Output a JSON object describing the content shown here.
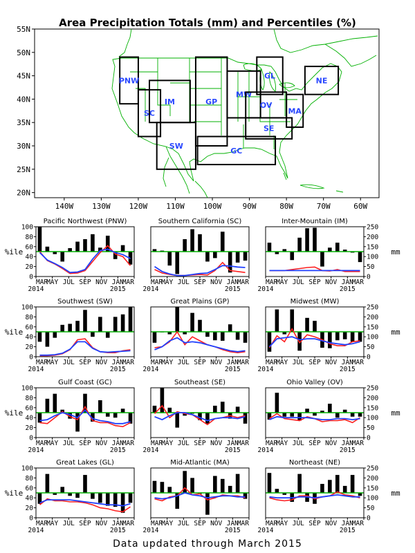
{
  "title": "Area Precipitation Totals (mm) and Percentiles (%)",
  "footer": "Data updated through March 2015",
  "colors": {
    "bar": "#000000",
    "pct_line": "#ff2020",
    "mm_line": "#2040ff",
    "median": "#00b000",
    "map_lines": "#00b000",
    "boxes": "#000000",
    "region_text": "#2a48ff"
  },
  "map": {
    "lat_labels": [
      "55N",
      "50N",
      "45N",
      "40N",
      "35N",
      "30N",
      "25N",
      "20N"
    ],
    "lon_labels": [
      "140W",
      "130W",
      "120W",
      "110W",
      "100W",
      "90W",
      "80W",
      "70W",
      "60W"
    ],
    "regions": [
      {
        "code": "PNW",
        "lon": [
          -125,
          -120
        ],
        "lat": [
          39,
          49
        ]
      },
      {
        "code": "SC",
        "lon": [
          -120,
          -114
        ],
        "lat": [
          32,
          42
        ]
      },
      {
        "code": "IM",
        "lon": [
          -117,
          -106
        ],
        "lat": [
          35,
          44
        ]
      },
      {
        "code": "SW",
        "lon": [
          -115,
          -104.5
        ],
        "lat": [
          25,
          35
        ]
      },
      {
        "code": "GP",
        "lon": [
          -104.5,
          -96
        ],
        "lat": [
          30,
          49
        ]
      },
      {
        "code": "MW",
        "lon": [
          -96,
          -87
        ],
        "lat": [
          36,
          46
        ]
      },
      {
        "code": "GL",
        "lon": [
          -88,
          -81
        ],
        "lat": [
          41,
          49
        ]
      },
      {
        "code": "OV",
        "lon": [
          -91,
          -80
        ],
        "lat": [
          36,
          41.5
        ]
      },
      {
        "code": "SE",
        "lon": [
          -91,
          -78.5
        ],
        "lat": [
          31.5,
          36
        ]
      },
      {
        "code": "GC",
        "lon": [
          -104,
          -83
        ],
        "lat": [
          26,
          32
        ]
      },
      {
        "code": "MA",
        "lon": [
          -80,
          -75.5
        ],
        "lat": [
          34,
          41
        ]
      },
      {
        "code": "NE",
        "lon": [
          -75,
          -66
        ],
        "lat": [
          41,
          47
        ]
      }
    ]
  },
  "panel_axes": {
    "pct_label": "%ile",
    "mm_label": "mm",
    "pct_ticks": [
      "0",
      "20",
      "40",
      "60",
      "80",
      "100"
    ],
    "mm_ticks": [
      "0",
      "50",
      "100",
      "150",
      "200",
      "250"
    ],
    "month_ticks": [
      "MAR",
      "MAY",
      "JUL",
      "SEP",
      "NOV",
      "JAN",
      "MAR"
    ],
    "year_start": "2014",
    "year_end": "2015"
  },
  "chart_data": [
    {
      "type": "bar",
      "title": "Pacific Northwest (PNW)",
      "months": [
        "MAR 2014",
        "APR",
        "MAY",
        "JUN",
        "JUL",
        "AUG",
        "SEP",
        "OCT",
        "NOV",
        "DEC",
        "JAN 2015",
        "FEB",
        "MAR"
      ],
      "ylim": [
        0,
        100
      ],
      "y2lim": [
        0,
        250
      ],
      "percentile": [
        100,
        60,
        45,
        30,
        57,
        70,
        75,
        85,
        58,
        82,
        35,
        63,
        24
      ],
      "pct_line": [
        50,
        32,
        25,
        16,
        6,
        7,
        12,
        30,
        48,
        62,
        45,
        40,
        22
      ],
      "mm_line": [
        48,
        33,
        26,
        18,
        8,
        9,
        14,
        35,
        52,
        55,
        48,
        44,
        36
      ]
    },
    {
      "type": "bar",
      "title": "Southern California (SC)",
      "months": [
        "MAR 2014",
        "APR",
        "MAY",
        "JUN",
        "JUL",
        "AUG",
        "SEP",
        "OCT",
        "NOV",
        "DEC",
        "JAN 2015",
        "FEB",
        "MAR"
      ],
      "ylim": [
        0,
        100
      ],
      "y2lim": [
        0,
        250
      ],
      "percentile": [
        55,
        52,
        22,
        5,
        75,
        95,
        85,
        30,
        37,
        90,
        8,
        28,
        32
      ],
      "pct_line": [
        14,
        7,
        4,
        2,
        2,
        3,
        4,
        3,
        12,
        28,
        12,
        10,
        8
      ],
      "mm_line": [
        20,
        10,
        5,
        2,
        2,
        4,
        6,
        7,
        14,
        22,
        21,
        19,
        18
      ]
    },
    {
      "type": "bar",
      "title": "Inter-Mountain (IM)",
      "months": [
        "MAR 2014",
        "APR",
        "MAY",
        "JUN",
        "JUL",
        "AUG",
        "SEP",
        "OCT",
        "NOV",
        "DEC",
        "JAN 2015",
        "FEB",
        "MAR"
      ],
      "ylim": [
        0,
        100
      ],
      "y2lim": [
        0,
        250
      ],
      "percentile": [
        68,
        45,
        55,
        33,
        78,
        97,
        98,
        20,
        58,
        68,
        54,
        48,
        29
      ],
      "pct_line": [
        12,
        12,
        12,
        14,
        16,
        18,
        19,
        12,
        11,
        14,
        10,
        10,
        10
      ],
      "mm_line": [
        12,
        12,
        12,
        12,
        12,
        12,
        12,
        12,
        12,
        12,
        12,
        12,
        12
      ]
    },
    {
      "type": "bar",
      "title": "Southwest (SW)",
      "months": [
        "MAR 2014",
        "APR",
        "MAY",
        "JUN",
        "JUL",
        "AUG",
        "SEP",
        "OCT",
        "NOV",
        "DEC",
        "JAN 2015",
        "FEB",
        "MAR"
      ],
      "ylim": [
        0,
        100
      ],
      "y2lim": [
        0,
        250
      ],
      "percentile": [
        30,
        20,
        38,
        64,
        66,
        72,
        94,
        40,
        80,
        38,
        80,
        85,
        100
      ],
      "pct_line": [
        2,
        2,
        3,
        6,
        14,
        34,
        36,
        18,
        10,
        8,
        8,
        12,
        14
      ],
      "mm_line": [
        3,
        3,
        4,
        7,
        15,
        30,
        30,
        17,
        10,
        9,
        10,
        11,
        12
      ]
    },
    {
      "type": "bar",
      "title": "Great Plains (GP)",
      "months": [
        "MAR 2014",
        "APR",
        "MAY",
        "JUN",
        "JUL",
        "AUG",
        "SEP",
        "OCT",
        "NOV",
        "DEC",
        "JAN 2015",
        "FEB",
        "MAR"
      ],
      "ylim": [
        0,
        100
      ],
      "y2lim": [
        0,
        250
      ],
      "percentile": [
        28,
        50,
        45,
        100,
        45,
        88,
        74,
        40,
        33,
        32,
        65,
        34,
        28
      ],
      "pct_line": [
        18,
        20,
        30,
        50,
        24,
        40,
        32,
        24,
        20,
        14,
        10,
        8,
        10
      ],
      "mm_line": [
        14,
        20,
        32,
        38,
        28,
        30,
        28,
        24,
        20,
        16,
        12,
        10,
        12
      ]
    },
    {
      "type": "bar",
      "title": "Midwest (MW)",
      "months": [
        "MAR 2014",
        "APR",
        "MAY",
        "JUN",
        "JUL",
        "AUG",
        "SEP",
        "OCT",
        "NOV",
        "DEC",
        "JAN 2015",
        "FEB",
        "MAR"
      ],
      "ylim": [
        0,
        100
      ],
      "y2lim": [
        0,
        250
      ],
      "percentile": [
        10,
        95,
        45,
        95,
        12,
        78,
        72,
        18,
        17,
        33,
        35,
        30,
        30
      ],
      "pct_line": [
        18,
        42,
        30,
        56,
        28,
        44,
        40,
        34,
        26,
        22,
        22,
        30,
        32
      ],
      "mm_line": [
        20,
        36,
        38,
        40,
        34,
        36,
        36,
        32,
        28,
        26,
        24,
        26,
        30
      ]
    },
    {
      "type": "bar",
      "title": "Gulf Coast (GC)",
      "months": [
        "MAR 2014",
        "APR",
        "MAY",
        "JUN",
        "JUL",
        "AUG",
        "SEP",
        "OCT",
        "NOV",
        "DEC",
        "JAN 2015",
        "FEB",
        "MAR"
      ],
      "ylim": [
        0,
        100
      ],
      "y2lim": [
        0,
        250
      ],
      "percentile": [
        30,
        78,
        88,
        56,
        38,
        12,
        88,
        32,
        75,
        42,
        40,
        58,
        28
      ],
      "pct_line": [
        30,
        28,
        40,
        52,
        42,
        36,
        62,
        34,
        30,
        30,
        24,
        22,
        30
      ],
      "mm_line": [
        34,
        36,
        44,
        50,
        46,
        40,
        55,
        38,
        34,
        32,
        28,
        28,
        32
      ]
    },
    {
      "type": "bar",
      "title": "Southeast (SE)",
      "months": [
        "MAR 2014",
        "APR",
        "MAY",
        "JUN",
        "JUL",
        "AUG",
        "SEP",
        "OCT",
        "NOV",
        "DEC",
        "JAN 2015",
        "FEB",
        "MAR"
      ],
      "ylim": [
        0,
        100
      ],
      "y2lim": [
        0,
        250
      ],
      "percentile": [
        64,
        100,
        60,
        20,
        44,
        48,
        35,
        28,
        64,
        72,
        38,
        62,
        28
      ],
      "pct_line": [
        48,
        64,
        40,
        52,
        48,
        46,
        36,
        26,
        38,
        40,
        44,
        40,
        44
      ],
      "mm_line": [
        42,
        36,
        44,
        50,
        50,
        46,
        40,
        34,
        38,
        40,
        40,
        38,
        42
      ]
    },
    {
      "type": "bar",
      "title": "Ohio Valley (OV)",
      "months": [
        "MAR 2014",
        "APR",
        "MAY",
        "JUN",
        "JUL",
        "AUG",
        "SEP",
        "OCT",
        "NOV",
        "DEC",
        "JAN 2015",
        "FEB",
        "MAR"
      ],
      "ylim": [
        0,
        100
      ],
      "y2lim": [
        0,
        250
      ],
      "percentile": [
        36,
        90,
        42,
        42,
        34,
        58,
        44,
        54,
        68,
        40,
        56,
        42,
        42
      ],
      "pct_line": [
        38,
        48,
        38,
        36,
        34,
        42,
        38,
        32,
        34,
        34,
        36,
        30,
        40
      ],
      "mm_line": [
        36,
        42,
        40,
        40,
        40,
        40,
        38,
        36,
        36,
        38,
        38,
        36,
        38
      ]
    },
    {
      "type": "bar",
      "title": "Great Lakes (GL)",
      "months": [
        "MAR 2014",
        "APR",
        "MAY",
        "JUN",
        "JUL",
        "AUG",
        "SEP",
        "OCT",
        "NOV",
        "DEC",
        "JAN 2015",
        "FEB",
        "MAR"
      ],
      "ylim": [
        0,
        100
      ],
      "y2lim": [
        0,
        250
      ],
      "percentile": [
        28,
        88,
        46,
        62,
        44,
        40,
        86,
        38,
        30,
        24,
        22,
        10,
        30
      ],
      "pct_line": [
        26,
        38,
        34,
        34,
        32,
        32,
        30,
        26,
        20,
        18,
        14,
        12,
        22
      ],
      "mm_line": [
        30,
        36,
        36,
        36,
        36,
        34,
        32,
        30,
        28,
        26,
        26,
        24,
        28
      ]
    },
    {
      "type": "bar",
      "title": "Mid-Atlantic (MA)",
      "months": [
        "MAR 2014",
        "APR",
        "MAY",
        "JUN",
        "JUL",
        "AUG",
        "SEP",
        "OCT",
        "NOV",
        "DEC",
        "JAN 2015",
        "FEB",
        "MAR"
      ],
      "ylim": [
        0,
        100
      ],
      "y2lim": [
        0,
        250
      ],
      "percentile": [
        74,
        72,
        62,
        18,
        94,
        80,
        48,
        6,
        84,
        78,
        64,
        88,
        38
      ],
      "pct_line": [
        38,
        34,
        42,
        44,
        60,
        46,
        48,
        36,
        40,
        46,
        44,
        44,
        40
      ],
      "mm_line": [
        40,
        38,
        40,
        44,
        50,
        46,
        44,
        40,
        42,
        44,
        44,
        42,
        42
      ]
    },
    {
      "type": "bar",
      "title": "Northeast (NE)",
      "months": [
        "MAR 2014",
        "APR",
        "MAY",
        "JUN",
        "JUL",
        "AUG",
        "SEP",
        "OCT",
        "NOV",
        "DEC",
        "JAN 2015",
        "FEB",
        "MAR"
      ],
      "ylim": [
        0,
        100
      ],
      "y2lim": [
        0,
        250
      ],
      "percentile": [
        90,
        58,
        46,
        32,
        88,
        32,
        28,
        68,
        76,
        86,
        64,
        86,
        44
      ],
      "pct_line": [
        40,
        36,
        34,
        36,
        44,
        44,
        38,
        42,
        44,
        52,
        46,
        44,
        40
      ],
      "mm_line": [
        42,
        40,
        40,
        40,
        42,
        42,
        40,
        42,
        44,
        46,
        44,
        42,
        42
      ]
    }
  ]
}
